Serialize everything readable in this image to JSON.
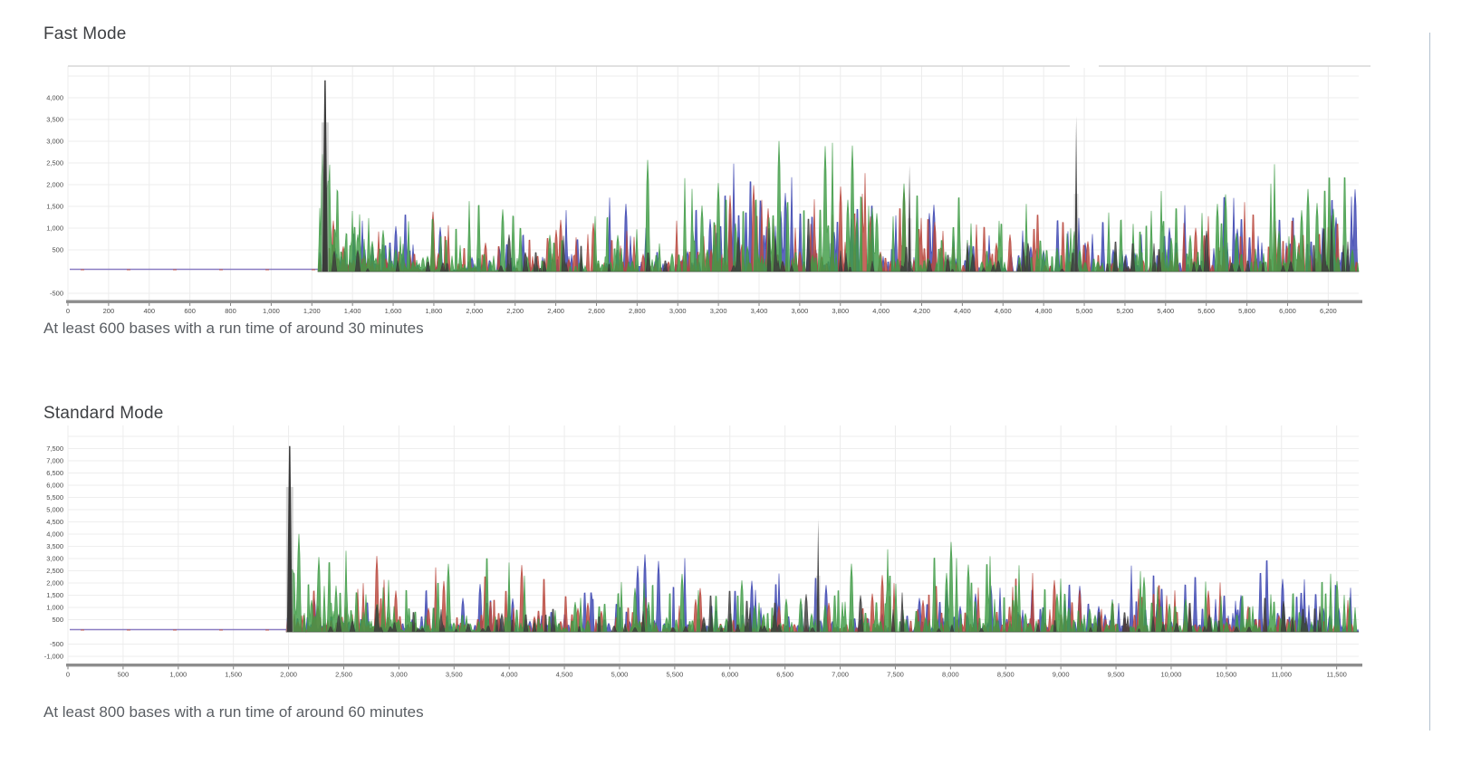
{
  "page": {
    "background": "#ffffff",
    "divider_color": "#b3c2cf"
  },
  "chart_data": [
    {
      "type": "area",
      "chart_kind": "dna-sequencing-chromatogram",
      "title": "Fast Mode",
      "caption": "At least 600 bases with a run time of around 30 minutes",
      "xlabel": "",
      "ylabel": "",
      "legend": "none",
      "grid": true,
      "xlim": [
        0,
        6350
      ],
      "ylim": [
        -625,
        4730
      ],
      "x_ticks": {
        "start": 0,
        "step": 200,
        "labels": [
          "0",
          "200",
          "400",
          "600",
          "800",
          "1,000",
          "1,200",
          "1,400",
          "1,600",
          "1,800",
          "2,000",
          "2,200",
          "2,400",
          "2,600",
          "2,800",
          "3,000",
          "3,200",
          "3,400",
          "3,600",
          "3,800",
          "4,000",
          "4,200",
          "4,400",
          "4,600",
          "4,800",
          "5,000",
          "5,200",
          "5,400",
          "5,600",
          "5,800",
          "6,000",
          "6,200"
        ]
      },
      "y_ticks": [
        [
          4000,
          "4,000"
        ],
        [
          3500,
          "3,500"
        ],
        [
          3000,
          "3,000"
        ],
        [
          2500,
          "2,500"
        ],
        [
          2000,
          "2,000"
        ],
        [
          1500,
          "1,500"
        ],
        [
          1000,
          "1,000"
        ],
        [
          500,
          "500"
        ],
        [
          -500,
          "-500"
        ]
      ],
      "baseline_value": 0,
      "flat_until_x": 1230,
      "injection_spike": {
        "x": 1265,
        "value": 4400,
        "channel": "G"
      },
      "green_surge": {
        "value": 3400,
        "decay_x_units": 230
      },
      "notable_spikes": [
        {
          "x": 4140,
          "value": 2450,
          "channel": "G"
        },
        {
          "x": 4960,
          "value": 3580,
          "channel": "G"
        }
      ],
      "channels": [
        {
          "base": "A",
          "color": "#3f9b46",
          "typical_peak_max": 2900,
          "density": 0.32
        },
        {
          "base": "C",
          "color": "#3a44b0",
          "typical_peak_max": 2200,
          "density": 0.3
        },
        {
          "base": "T",
          "color": "#b8453a",
          "typical_peak_max": 2050,
          "density": 0.3
        },
        {
          "base": "G",
          "color": "#3c3c3c",
          "typical_peak_max": 1350,
          "density": 0.07
        }
      ],
      "seed": 101
    },
    {
      "type": "area",
      "chart_kind": "dna-sequencing-chromatogram",
      "title": "Standard Mode",
      "caption": "At least 800 bases with a run time of around 60 minutes",
      "xlabel": "",
      "ylabel": "",
      "legend": "none",
      "grid": true,
      "xlim": [
        0,
        11700
      ],
      "ylim": [
        -1300,
        8450
      ],
      "x_ticks": {
        "start": 0,
        "step": 500,
        "labels": [
          "0",
          "500",
          "1,000",
          "1,500",
          "2,000",
          "2,500",
          "3,000",
          "3,500",
          "4,000",
          "4,500",
          "5,000",
          "5,500",
          "6,000",
          "6,500",
          "7,000",
          "7,500",
          "8,000",
          "8,500",
          "9,000",
          "9,500",
          "10,000",
          "10,500",
          "11,000",
          "11,500"
        ]
      },
      "y_ticks": [
        [
          7500,
          "7,500"
        ],
        [
          7000,
          "7,000"
        ],
        [
          6500,
          "6,500"
        ],
        [
          6000,
          "6,000"
        ],
        [
          5500,
          "5,500"
        ],
        [
          5000,
          "5,000"
        ],
        [
          4500,
          "4,500"
        ],
        [
          4000,
          "4,000"
        ],
        [
          3500,
          "3,500"
        ],
        [
          3000,
          "3,000"
        ],
        [
          2500,
          "2,500"
        ],
        [
          2000,
          "2,000"
        ],
        [
          1500,
          "1,500"
        ],
        [
          1000,
          "1,000"
        ],
        [
          500,
          "500"
        ],
        [
          -500,
          "-500"
        ],
        [
          -1000,
          "-1,000"
        ]
      ],
      "baseline_value": 0,
      "flat_until_x": 1980,
      "injection_spike": {
        "x": 2010,
        "value": 7600,
        "channel": "G"
      },
      "green_surge": {
        "value": 5800,
        "decay_x_units": 420
      },
      "notable_spikes": [
        {
          "x": 6800,
          "value": 4600,
          "channel": "G"
        }
      ],
      "channels": [
        {
          "base": "A",
          "color": "#3f9b46",
          "typical_peak_max": 4300,
          "density": 0.32
        },
        {
          "base": "C",
          "color": "#3a44b0",
          "typical_peak_max": 3200,
          "density": 0.3
        },
        {
          "base": "T",
          "color": "#b8453a",
          "typical_peak_max": 3000,
          "density": 0.3
        },
        {
          "base": "G",
          "color": "#3c3c3c",
          "typical_peak_max": 1900,
          "density": 0.07
        }
      ],
      "seed": 202
    }
  ]
}
